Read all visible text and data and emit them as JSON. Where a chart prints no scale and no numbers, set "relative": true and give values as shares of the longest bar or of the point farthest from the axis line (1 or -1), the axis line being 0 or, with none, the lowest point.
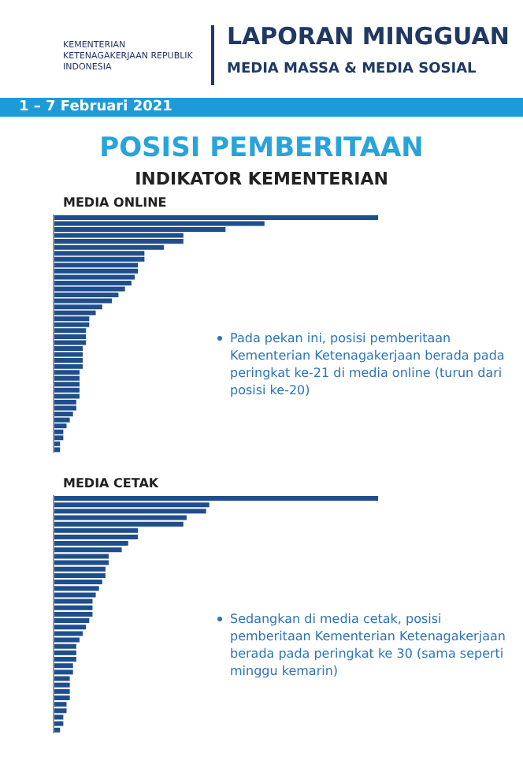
{
  "chart_data": [
    {
      "type": "other",
      "title": "LAPORAN MINGGUAN",
      "subtitle": "MEDIA MASSA & MEDIA SOSIAL",
      "annotations": [
        "KEMENTERIAN KETENAGAKERJAAN REPUBLIK INDONESIA",
        "1 – 7 Februari 2021",
        "POSISI PEMBERITAAN",
        "INDIKATOR KEMENTERIAN"
      ]
    },
    {
      "type": "bar",
      "orientation": "horizontal",
      "relative": true,
      "title": "MEDIA ONLINE",
      "color": "#1f4e8c",
      "categories": [
        null,
        null,
        null,
        null,
        null,
        null,
        null,
        null,
        null,
        null,
        null,
        null,
        null,
        null,
        null,
        null,
        null,
        null,
        null,
        null,
        null,
        null,
        null,
        null,
        null,
        null,
        null,
        null,
        null,
        null,
        null,
        null,
        null,
        null,
        null,
        null,
        null,
        null,
        null,
        null
      ],
      "values": [
        1,
        0.65,
        0.53,
        0.4,
        0.4,
        0.34,
        0.28,
        0.28,
        0.26,
        0.26,
        0.25,
        0.24,
        0.22,
        0.2,
        0.18,
        0.15,
        0.13,
        0.11,
        0.11,
        0.1,
        0.1,
        0.1,
        0.09,
        0.09,
        0.09,
        0.09,
        0.08,
        0.08,
        0.08,
        0.08,
        0.08,
        0.07,
        0.07,
        0.06,
        0.05,
        0.04,
        0.03,
        0.03,
        0.02,
        0.02
      ],
      "annotations": [
        "Pada pekan ini, posisi pemberitaan Kementerian Ketenagakerjaan berada pada peringkat ke-21 di media online (turun dari posisi ke-20)"
      ]
    },
    {
      "type": "bar",
      "orientation": "horizontal",
      "relative": true,
      "title": "MEDIA CETAK",
      "color": "#1f4e8c",
      "categories": [
        null,
        null,
        null,
        null,
        null,
        null,
        null,
        null,
        null,
        null,
        null,
        null,
        null,
        null,
        null,
        null,
        null,
        null,
        null,
        null,
        null,
        null,
        null,
        null,
        null,
        null,
        null,
        null,
        null,
        null,
        null,
        null,
        null,
        null,
        null,
        null,
        null
      ],
      "values": [
        1,
        0.48,
        0.47,
        0.41,
        0.4,
        0.26,
        0.26,
        0.23,
        0.21,
        0.17,
        0.17,
        0.16,
        0.16,
        0.15,
        0.14,
        0.13,
        0.12,
        0.12,
        0.12,
        0.11,
        0.1,
        0.09,
        0.08,
        0.07,
        0.07,
        0.07,
        0.06,
        0.06,
        0.05,
        0.05,
        0.05,
        0.05,
        0.04,
        0.04,
        0.03,
        0.03,
        0.02
      ],
      "annotations": [
        "Sedangkan di media cetak, posisi pemberitaan Kementerian Ketenagakerjaan berada pada peringkat ke 30 (sama seperti minggu kemarin)"
      ]
    }
  ]
}
